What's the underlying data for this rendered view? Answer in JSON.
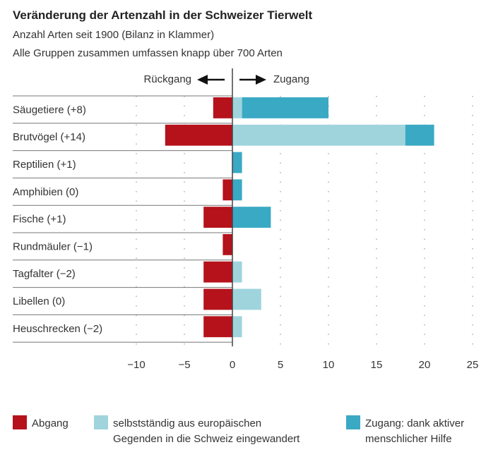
{
  "chart_data": {
    "type": "bar",
    "orientation": "horizontal",
    "stacked": true,
    "title": "Veränderung der Artenzahl in der Schweizer Tierwelt",
    "subtitle": [
      "Anzahl Arten seit 1900 (Bilanz in Klammer)",
      "Alle Gruppen zusammen umfassen knapp über 700 Arten"
    ],
    "direction_labels": {
      "left": "Rückgang",
      "right": "Zugang"
    },
    "categories": [
      "Säugetiere (+8)",
      "Brutvögel (+14)",
      "Reptilien (+1)",
      "Amphibien (0)",
      "Fische (+1)",
      "Rundmäuler (−1)",
      "Tagfalter (−2)",
      "Libellen (0)",
      "Heuschrecken (−2)"
    ],
    "series": [
      {
        "name": "Abgang",
        "color": "#b5121b",
        "values": [
          -2,
          -7,
          0,
          -1,
          -3,
          -1,
          -3,
          -3,
          -3
        ]
      },
      {
        "name": "selbstständig aus europäischen Gegenden in die Schweiz eingewandert",
        "color": "#9fd4dd",
        "values": [
          1,
          18,
          0,
          0,
          0,
          0,
          1,
          3,
          1
        ]
      },
      {
        "name": "Zugang: dank aktiver menschlicher Hilfe",
        "color": "#3aa9c4",
        "values": [
          9,
          3,
          1,
          1,
          4,
          0,
          0,
          0,
          0
        ]
      }
    ],
    "xlim": [
      -10,
      25
    ],
    "xticks": [
      -10,
      -5,
      0,
      5,
      10,
      15,
      20,
      25
    ],
    "xtick_labels": [
      "−10",
      "−5",
      "0",
      "5",
      "10",
      "15",
      "20",
      "25"
    ],
    "grid": "dotted vertical",
    "legend": {
      "placement": "bottom",
      "items": [
        {
          "lines": [
            "Abgang"
          ]
        },
        {
          "lines": [
            "selbstständig aus europäischen",
            "Gegenden in die Schweiz eingewandert"
          ]
        },
        {
          "lines": [
            "Zugang: dank aktiver",
            "menschlicher Hilfe"
          ]
        }
      ]
    }
  }
}
